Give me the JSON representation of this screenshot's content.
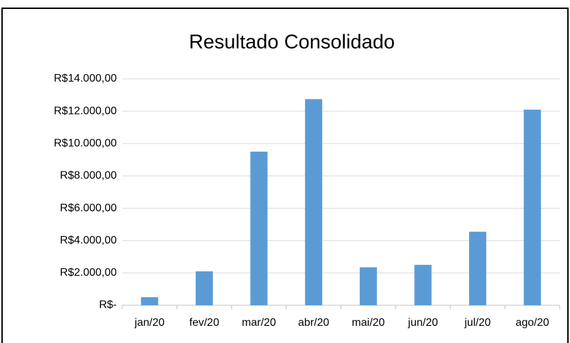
{
  "chart_data": {
    "type": "bar",
    "title": "Resultado Consolidado",
    "categories": [
      "jan/20",
      "fev/20",
      "mar/20",
      "abr/20",
      "mai/20",
      "jun/20",
      "jul/20",
      "ago/20"
    ],
    "values": [
      500,
      2100,
      9500,
      12750,
      2350,
      2500,
      4550,
      12100
    ],
    "color": "#5b9bd5",
    "ylim": [
      0,
      14000
    ],
    "yticks": [
      {
        "value": 0,
        "label": "R$-"
      },
      {
        "value": 2000,
        "label": "R$2.000,00"
      },
      {
        "value": 4000,
        "label": "R$4.000,00"
      },
      {
        "value": 6000,
        "label": "R$6.000,00"
      },
      {
        "value": 8000,
        "label": "R$8.000,00"
      },
      {
        "value": 10000,
        "label": "R$10.000,00"
      },
      {
        "value": 12000,
        "label": "R$12.000,00"
      },
      {
        "value": 14000,
        "label": "R$14.000,00"
      }
    ],
    "grid": true
  }
}
